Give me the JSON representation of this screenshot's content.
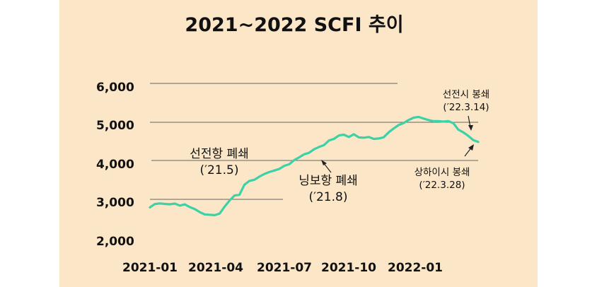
{
  "chart_data": {
    "type": "line",
    "title": "2021~2022 SCFI 추이",
    "xlabel": "",
    "ylabel": "",
    "ylim": [
      2000,
      6000
    ],
    "yticks": [
      "6,000",
      "5,000",
      "4,000",
      "3,000",
      "2,000"
    ],
    "xticks": [
      "2021-01",
      "2021-04",
      "2021-07",
      "2021-10",
      "2022-01"
    ],
    "grid": "partial horizontal",
    "legend": "none",
    "colors": {
      "line": "#3dd1a6",
      "grid": "#666666",
      "text": "#111111",
      "background": "#fbe6c8"
    },
    "x_range": [
      "2021-01",
      "2022-04"
    ],
    "series": [
      {
        "values": [
          [
            "2021-01-01",
            2783
          ],
          [
            "2021-01-08",
            2870
          ],
          [
            "2021-01-15",
            2885
          ],
          [
            "2021-01-22",
            2872
          ],
          [
            "2021-01-29",
            2862
          ],
          [
            "2021-02-05",
            2880
          ],
          [
            "2021-02-12",
            2830
          ],
          [
            "2021-02-19",
            2860
          ],
          [
            "2021-02-26",
            2790
          ],
          [
            "2021-03-05",
            2740
          ],
          [
            "2021-03-12",
            2660
          ],
          [
            "2021-03-19",
            2600
          ],
          [
            "2021-03-26",
            2590
          ],
          [
            "2021-04-02",
            2580
          ],
          [
            "2021-04-09",
            2620
          ],
          [
            "2021-04-16",
            2800
          ],
          [
            "2021-04-23",
            2960
          ],
          [
            "2021-04-30",
            3090
          ],
          [
            "2021-05-07",
            3110
          ],
          [
            "2021-05-14",
            3370
          ],
          [
            "2021-05-21",
            3470
          ],
          [
            "2021-05-28",
            3500
          ],
          [
            "2021-06-04",
            3580
          ],
          [
            "2021-06-11",
            3650
          ],
          [
            "2021-06-18",
            3700
          ],
          [
            "2021-06-25",
            3740
          ],
          [
            "2021-07-02",
            3780
          ],
          [
            "2021-07-09",
            3860
          ],
          [
            "2021-07-16",
            3900
          ],
          [
            "2021-07-23",
            4010
          ],
          [
            "2021-07-30",
            4080
          ],
          [
            "2021-08-06",
            4160
          ],
          [
            "2021-08-13",
            4200
          ],
          [
            "2021-08-20",
            4290
          ],
          [
            "2021-08-27",
            4350
          ],
          [
            "2021-09-03",
            4400
          ],
          [
            "2021-09-10",
            4520
          ],
          [
            "2021-09-17",
            4560
          ],
          [
            "2021-09-24",
            4650
          ],
          [
            "2021-10-01",
            4670
          ],
          [
            "2021-10-08",
            4610
          ],
          [
            "2021-10-15",
            4680
          ],
          [
            "2021-10-22",
            4600
          ],
          [
            "2021-10-29",
            4590
          ],
          [
            "2021-11-05",
            4610
          ],
          [
            "2021-11-12",
            4560
          ],
          [
            "2021-11-19",
            4570
          ],
          [
            "2021-11-26",
            4600
          ],
          [
            "2021-12-03",
            4730
          ],
          [
            "2021-12-10",
            4830
          ],
          [
            "2021-12-17",
            4920
          ],
          [
            "2021-12-24",
            4970
          ],
          [
            "2021-12-31",
            5050
          ],
          [
            "2022-01-07",
            5110
          ],
          [
            "2022-01-14",
            5130
          ],
          [
            "2022-01-21",
            5090
          ],
          [
            "2022-01-28",
            5050
          ],
          [
            "2022-02-04",
            5020
          ],
          [
            "2022-02-11",
            5020
          ],
          [
            "2022-02-18",
            5010
          ],
          [
            "2022-02-25",
            5020
          ],
          [
            "2022-03-04",
            4970
          ],
          [
            "2022-03-11",
            4800
          ],
          [
            "2022-03-18",
            4730
          ],
          [
            "2022-03-25",
            4640
          ],
          [
            "2022-04-01",
            4530
          ],
          [
            "2022-04-08",
            4480
          ]
        ]
      }
    ],
    "annotations": [
      {
        "name": "shenzhen",
        "lines": [
          "선전항 폐쇄",
          "(′21.5)"
        ],
        "date": "2021-05"
      },
      {
        "name": "ningbo",
        "lines": [
          "닝보항 폐쇄",
          "(′21.8)"
        ],
        "date": "2021-08"
      },
      {
        "name": "shenzhen-2022",
        "lines": [
          "선전시 봉쇄",
          "(′22.3.14)"
        ],
        "date": "2022-03-14"
      },
      {
        "name": "shanghai",
        "lines": [
          "상하이시 봉쇄",
          "(′22.3.28)"
        ],
        "date": "2022-03-28"
      }
    ]
  }
}
